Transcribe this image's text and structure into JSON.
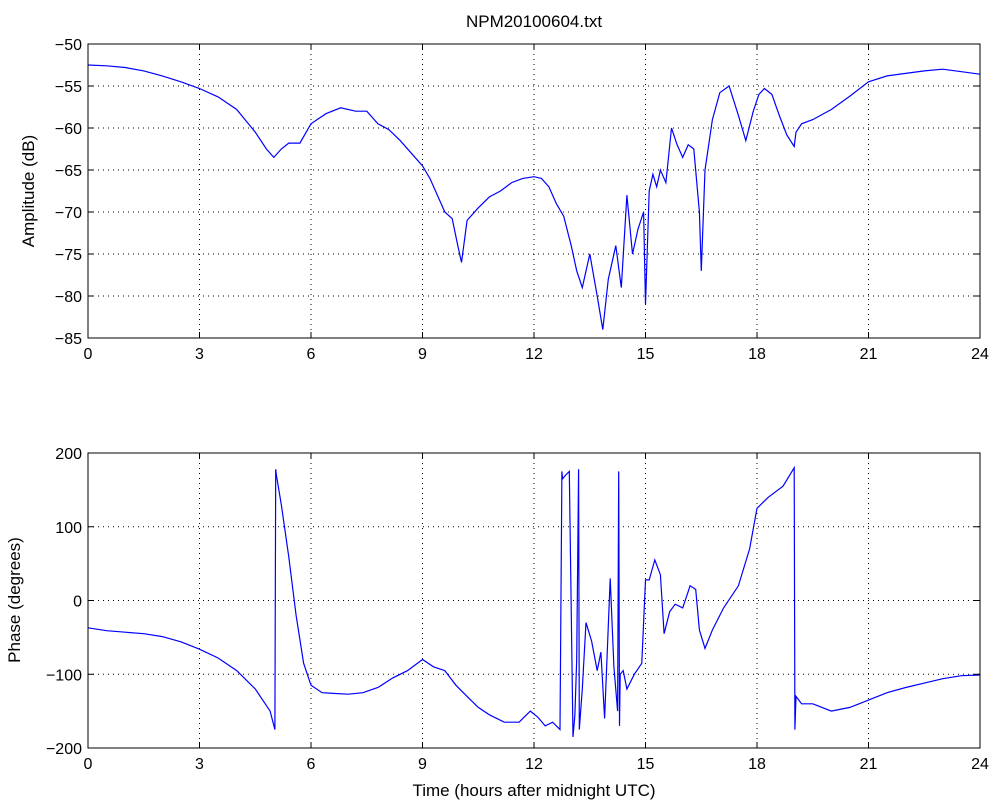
{
  "figure": {
    "background": "#ffffff",
    "line_color": "#0000ff"
  },
  "chart_data": [
    {
      "type": "line",
      "title": "NPM20100604.txt",
      "xlabel": "",
      "ylabel": "Amplitude (dB)",
      "xlim": [
        0,
        24
      ],
      "ylim": [
        -85,
        -50
      ],
      "xticks": [
        0,
        3,
        6,
        9,
        12,
        15,
        18,
        21,
        24
      ],
      "yticks": [
        -85,
        -80,
        -75,
        -70,
        -65,
        -60,
        -55,
        -50
      ],
      "xtick_labels": [
        "0",
        "3",
        "6",
        "9",
        "12",
        "15",
        "18",
        "21",
        "24"
      ],
      "ytick_labels": [
        "−85",
        "−80",
        "−75",
        "−70",
        "−65",
        "−60",
        "−55",
        "−50"
      ],
      "grid": true,
      "series": [
        {
          "color": "#0000ff",
          "x": [
            0,
            0.5,
            1,
            1.5,
            2,
            2.5,
            3,
            3.5,
            4,
            4.5,
            4.8,
            5.0,
            5.2,
            5.4,
            5.7,
            6.0,
            6.4,
            6.8,
            7.2,
            7.5,
            7.8,
            8.1,
            8.4,
            8.7,
            9.0,
            9.2,
            9.4,
            9.6,
            9.8,
            9.95,
            10.05,
            10.2,
            10.5,
            10.8,
            11.1,
            11.4,
            11.7,
            12.0,
            12.2,
            12.4,
            12.6,
            12.8,
            13.0,
            13.15,
            13.3,
            13.5,
            13.7,
            13.85,
            14.0,
            14.2,
            14.35,
            14.5,
            14.65,
            14.8,
            14.95,
            15.0,
            15.1,
            15.2,
            15.3,
            15.4,
            15.55,
            15.7,
            15.85,
            16.0,
            16.15,
            16.3,
            16.45,
            16.5,
            16.6,
            16.8,
            17.0,
            17.25,
            17.5,
            17.7,
            17.9,
            18.05,
            18.2,
            18.4,
            18.6,
            18.8,
            19.0,
            19.05,
            19.2,
            19.5,
            20.0,
            20.5,
            21.0,
            21.5,
            22.0,
            22.5,
            23.0,
            23.5,
            24.0
          ],
          "y": [
            -52.5,
            -52.6,
            -52.8,
            -53.2,
            -53.8,
            -54.5,
            -55.3,
            -56.3,
            -57.8,
            -60.5,
            -62.5,
            -63.5,
            -62.5,
            -61.8,
            -61.8,
            -59.5,
            -58.3,
            -57.6,
            -58.0,
            -58.0,
            -59.5,
            -60.2,
            -61.5,
            -63.0,
            -64.5,
            -66.0,
            -68.0,
            -70.0,
            -70.8,
            -74.0,
            -76.0,
            -71.0,
            -69.5,
            -68.2,
            -67.5,
            -66.5,
            -66.0,
            -65.8,
            -66.0,
            -67.0,
            -69.0,
            -70.5,
            -74.0,
            -77.0,
            -79.0,
            -75.0,
            -80.0,
            -84.0,
            -78.0,
            -74.0,
            -79.0,
            -68.0,
            -75.0,
            -72.0,
            -70.0,
            -81.0,
            -67.5,
            -65.5,
            -67.0,
            -65.0,
            -66.5,
            -60.0,
            -62.0,
            -63.5,
            -62.0,
            -62.5,
            -70.0,
            -77.0,
            -65.0,
            -59.0,
            -55.8,
            -55.0,
            -58.5,
            -61.5,
            -58.0,
            -56.0,
            -55.3,
            -56.0,
            -58.5,
            -60.8,
            -62.2,
            -60.5,
            -59.5,
            -59.0,
            -57.8,
            -56.2,
            -54.5,
            -53.8,
            -53.5,
            -53.2,
            -53.0,
            -53.3,
            -53.6
          ]
        }
      ]
    },
    {
      "type": "line",
      "title": "",
      "xlabel": "Time (hours after midnight UTC)",
      "ylabel": "Phase (degrees)",
      "xlim": [
        0,
        24
      ],
      "ylim": [
        -200,
        200
      ],
      "xticks": [
        0,
        3,
        6,
        9,
        12,
        15,
        18,
        21,
        24
      ],
      "yticks": [
        -200,
        -100,
        0,
        100,
        200
      ],
      "xtick_labels": [
        "0",
        "3",
        "6",
        "9",
        "12",
        "15",
        "18",
        "21",
        "24"
      ],
      "ytick_labels": [
        "−200",
        "−100",
        "0",
        "100",
        "200"
      ],
      "grid": true,
      "series": [
        {
          "color": "#0000ff",
          "x": [
            0,
            0.5,
            1,
            1.5,
            2,
            2.5,
            3,
            3.5,
            4,
            4.5,
            4.9,
            5.03,
            5.05,
            5.07,
            5.2,
            5.4,
            5.6,
            5.8,
            6.0,
            6.3,
            6.6,
            7.0,
            7.4,
            7.8,
            8.2,
            8.6,
            9.0,
            9.3,
            9.6,
            9.9,
            10.2,
            10.5,
            10.8,
            11.2,
            11.6,
            11.9,
            12.1,
            12.3,
            12.5,
            12.7,
            12.75,
            12.77,
            12.85,
            12.95,
            13.05,
            13.1,
            13.15,
            13.2,
            13.22,
            13.3,
            13.4,
            13.55,
            13.7,
            13.8,
            13.9,
            14.05,
            14.15,
            14.25,
            14.28,
            14.3,
            14.32,
            14.4,
            14.5,
            14.7,
            14.9,
            15.0,
            15.1,
            15.25,
            15.4,
            15.5,
            15.65,
            15.8,
            16.0,
            16.2,
            16.35,
            16.45,
            16.6,
            16.8,
            17.1,
            17.5,
            17.8,
            18.0,
            18.3,
            18.7,
            19.0,
            19.02,
            19.05,
            19.2,
            19.5,
            20.0,
            20.5,
            21.0,
            21.5,
            22.0,
            22.5,
            23.0,
            23.5,
            24.0
          ],
          "y": [
            -37,
            -41,
            -43,
            -45,
            -49,
            -56,
            -66,
            -78,
            -95,
            -120,
            -150,
            -175,
            178,
            170,
            130,
            60,
            -20,
            -85,
            -115,
            -125,
            -126,
            -127,
            -125,
            -118,
            -105,
            -95,
            -80,
            -90,
            -95,
            -115,
            -130,
            -145,
            -155,
            -165,
            -165,
            -150,
            -158,
            -170,
            -165,
            -175,
            175,
            165,
            170,
            175,
            -185,
            -155,
            -80,
            178,
            -175,
            -120,
            -30,
            -55,
            -95,
            -70,
            -160,
            30,
            -90,
            -150,
            175,
            -170,
            -100,
            -95,
            -120,
            -100,
            -85,
            28,
            28,
            55,
            35,
            -45,
            -15,
            -5,
            -10,
            20,
            15,
            -40,
            -65,
            -40,
            -10,
            20,
            70,
            125,
            140,
            155,
            180,
            -175,
            -130,
            -140,
            -140,
            -150,
            -145,
            -135,
            -125,
            -118,
            -112,
            -106,
            -102,
            -101
          ]
        }
      ]
    }
  ]
}
